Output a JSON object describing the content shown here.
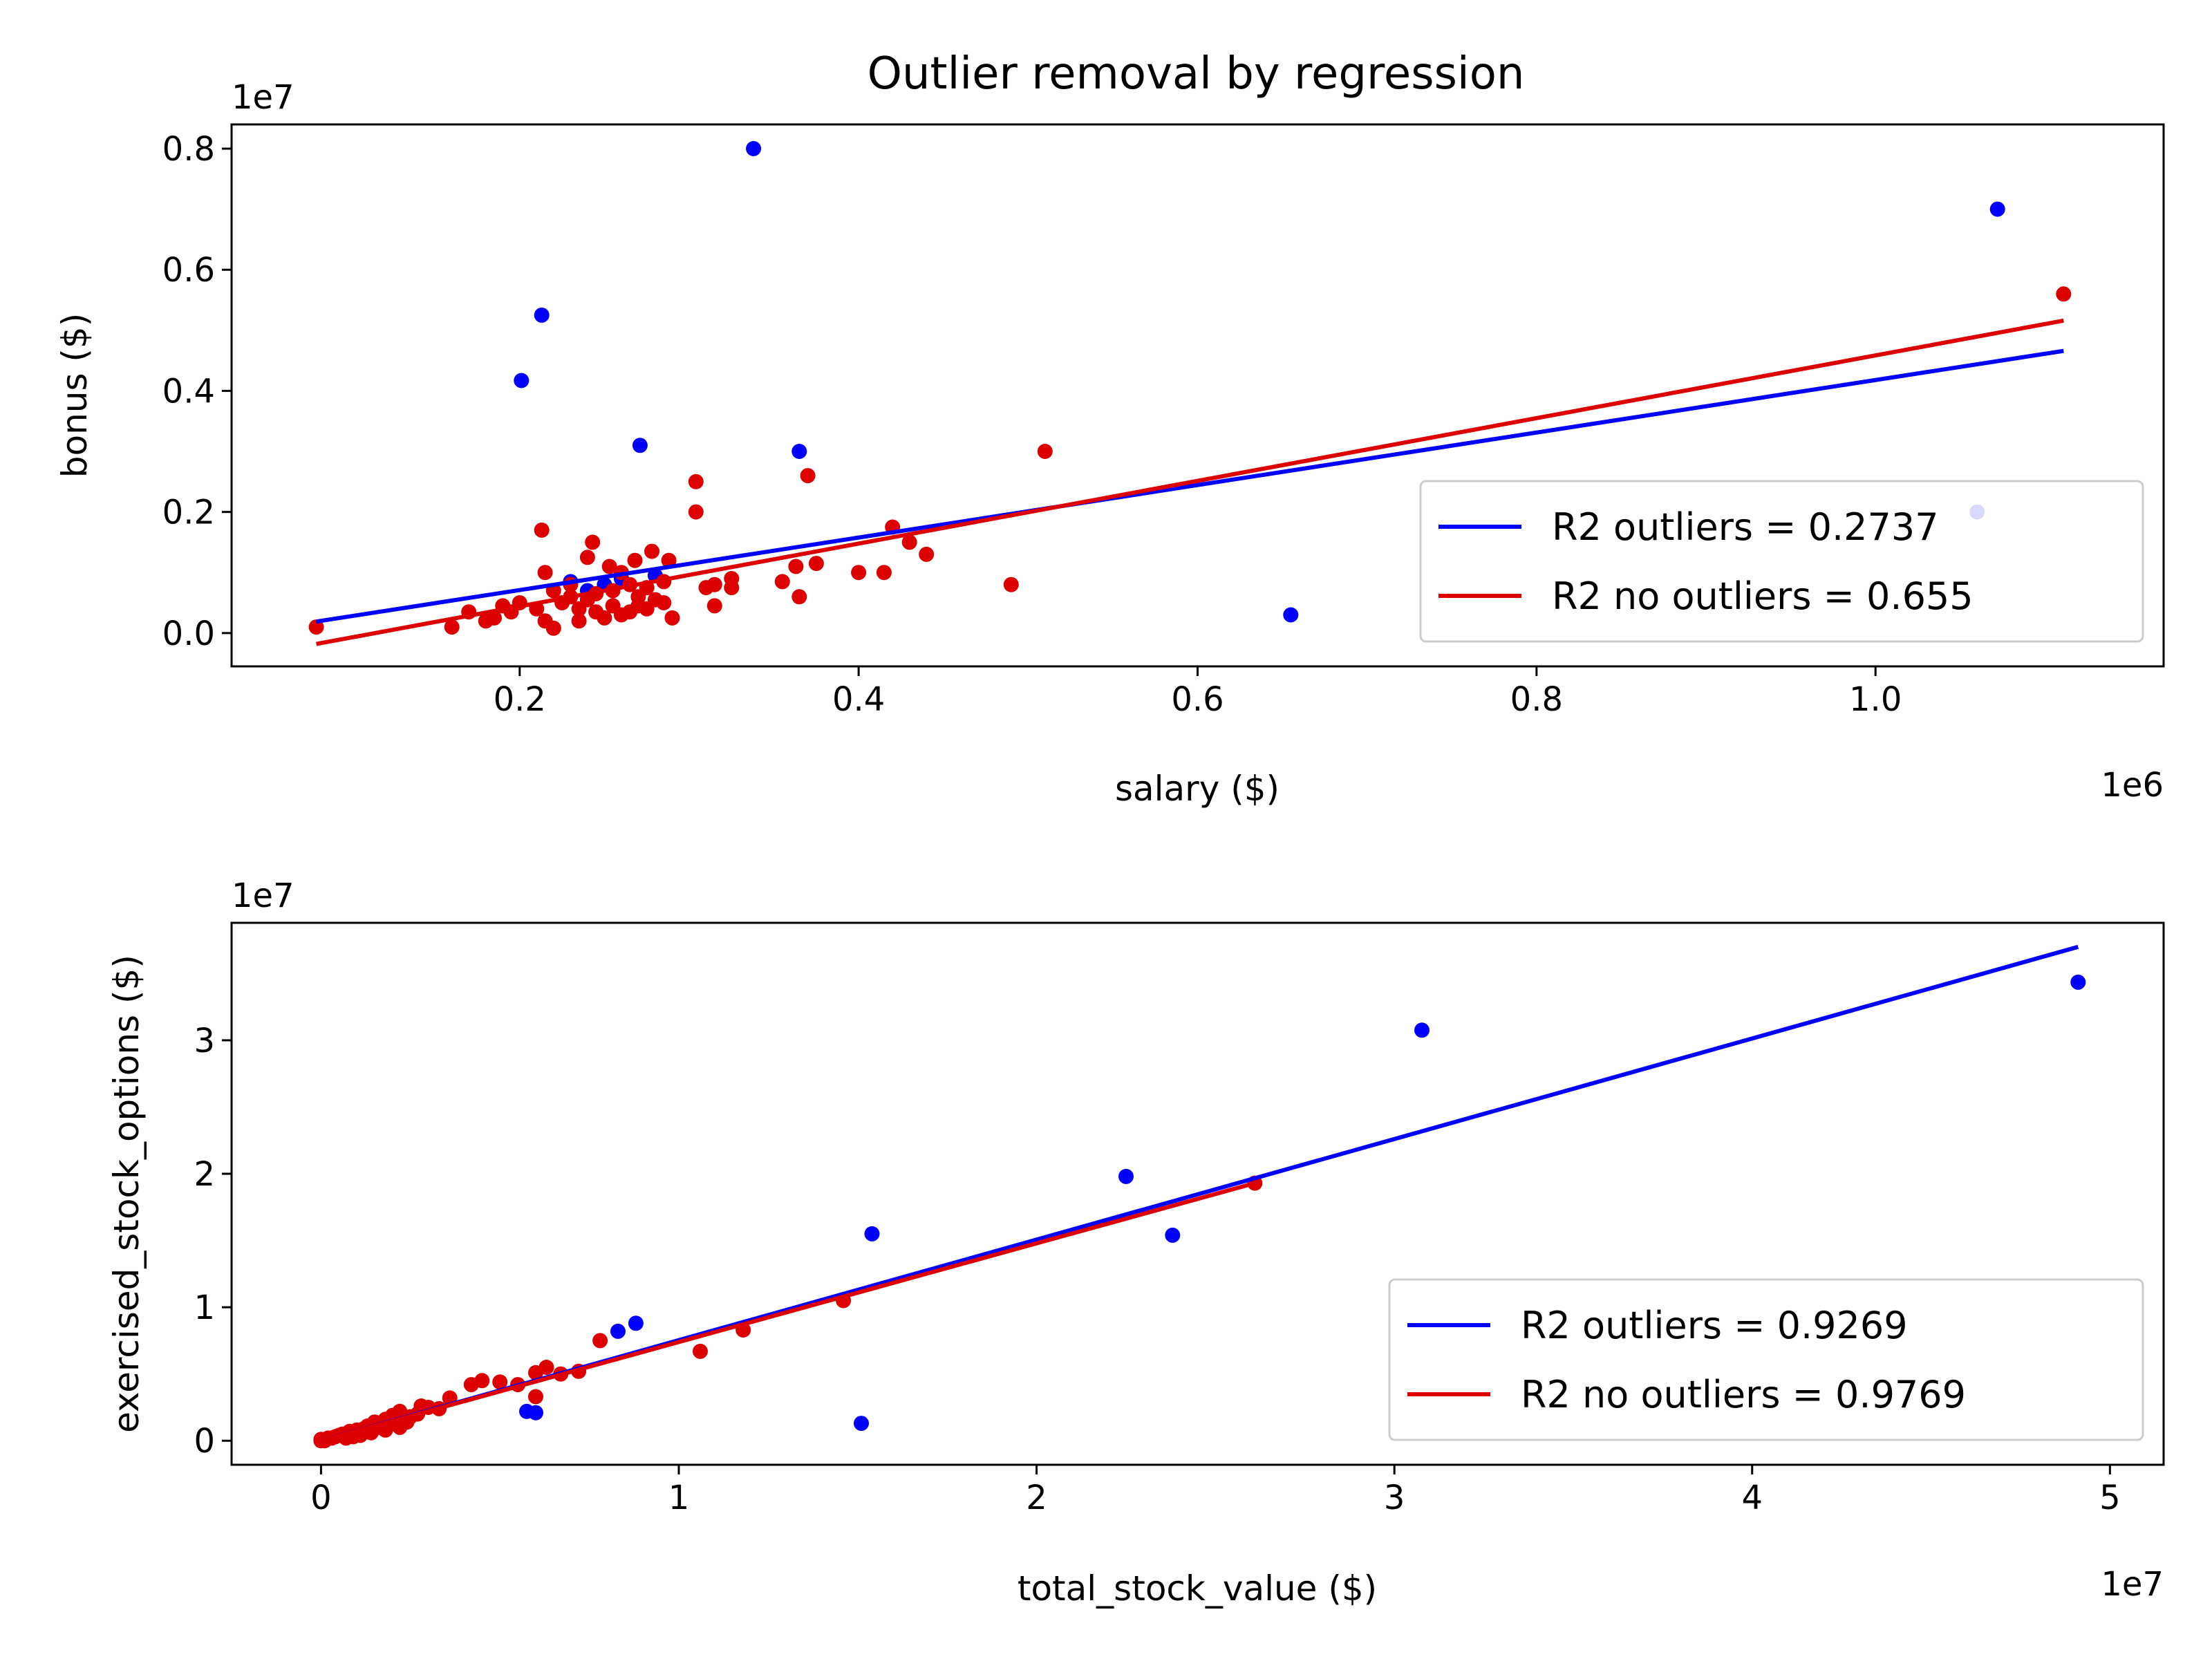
{
  "figure": {
    "title": "Outlier removal by regression"
  },
  "colors": {
    "outliers": "#0000ff",
    "no_outliers": "#dd0000",
    "axes": "#000000",
    "background": "#ffffff"
  },
  "chart_data": [
    {
      "type": "scatter",
      "title": "Outlier removal by regression",
      "xlabel": "salary ($)",
      "ylabel": "bonus ($)",
      "x_offset_label": "1e6",
      "y_offset_label": "1e7",
      "xlim": [
        0.03,
        1.17
      ],
      "ylim": [
        -0.055,
        0.84
      ],
      "xticks": [
        {
          "value": 0.2,
          "label": "0.2"
        },
        {
          "value": 0.4,
          "label": "0.4"
        },
        {
          "value": 0.6,
          "label": "0.6"
        },
        {
          "value": 0.8,
          "label": "0.8"
        },
        {
          "value": 1.0,
          "label": "1.0"
        }
      ],
      "yticks": [
        {
          "value": 0.0,
          "label": "0.0"
        },
        {
          "value": 0.2,
          "label": "0.2"
        },
        {
          "value": 0.4,
          "label": "0.4"
        },
        {
          "value": 0.6,
          "label": "0.6"
        },
        {
          "value": 0.8,
          "label": "0.8"
        }
      ],
      "grid": false,
      "legend_position": "lower-right",
      "series": [
        {
          "name": "",
          "kind": "points",
          "color": "#0000ff",
          "points": [
            [
              0.338,
              0.8
            ],
            [
              1.072,
              0.7
            ],
            [
              0.213,
              0.525
            ],
            [
              0.201,
              0.417
            ],
            [
              0.271,
              0.31
            ],
            [
              0.365,
              0.3
            ],
            [
              0.655,
              0.03
            ],
            [
              1.06,
              0.2
            ],
            [
              0.25,
              0.08
            ],
            [
              0.26,
              0.09
            ],
            [
              0.24,
              0.07
            ],
            [
              0.28,
              0.095
            ],
            [
              0.23,
              0.085
            ]
          ]
        },
        {
          "name": "",
          "kind": "points",
          "color": "#dd0000",
          "points": [
            [
              0.08,
              0.01
            ],
            [
              1.111,
              0.56
            ],
            [
              0.51,
              0.3
            ],
            [
              0.37,
              0.26
            ],
            [
              0.304,
              0.25
            ],
            [
              0.304,
              0.2
            ],
            [
              0.213,
              0.17
            ],
            [
              0.42,
              0.175
            ],
            [
              0.43,
              0.15
            ],
            [
              0.44,
              0.13
            ],
            [
              0.375,
              0.115
            ],
            [
              0.363,
              0.11
            ],
            [
              0.355,
              0.085
            ],
            [
              0.365,
              0.06
            ],
            [
              0.4,
              0.1
            ],
            [
              0.415,
              0.1
            ],
            [
              0.49,
              0.08
            ],
            [
              0.325,
              0.09
            ],
            [
              0.315,
              0.08
            ],
            [
              0.31,
              0.075
            ],
            [
              0.315,
              0.045
            ],
            [
              0.325,
              0.075
            ],
            [
              0.243,
              0.15
            ],
            [
              0.24,
              0.125
            ],
            [
              0.215,
              0.1
            ],
            [
              0.253,
              0.11
            ],
            [
              0.268,
              0.12
            ],
            [
              0.278,
              0.135
            ],
            [
              0.288,
              0.12
            ],
            [
              0.26,
              0.1
            ],
            [
              0.23,
              0.08
            ],
            [
              0.245,
              0.065
            ],
            [
              0.255,
              0.07
            ],
            [
              0.265,
              0.08
            ],
            [
              0.275,
              0.075
            ],
            [
              0.285,
              0.085
            ],
            [
              0.22,
              0.07
            ],
            [
              0.2,
              0.05
            ],
            [
              0.19,
              0.045
            ],
            [
              0.21,
              0.04
            ],
            [
              0.225,
              0.05
            ],
            [
              0.235,
              0.04
            ],
            [
              0.245,
              0.035
            ],
            [
              0.255,
              0.045
            ],
            [
              0.265,
              0.035
            ],
            [
              0.275,
              0.04
            ],
            [
              0.18,
              0.02
            ],
            [
              0.185,
              0.025
            ],
            [
              0.17,
              0.035
            ],
            [
              0.16,
              0.01
            ],
            [
              0.195,
              0.035
            ],
            [
              0.215,
              0.02
            ],
            [
              0.22,
              0.008
            ],
            [
              0.235,
              0.02
            ],
            [
              0.25,
              0.025
            ],
            [
              0.26,
              0.03
            ],
            [
              0.27,
              0.06
            ],
            [
              0.28,
              0.055
            ],
            [
              0.29,
              0.025
            ],
            [
              0.24,
              0.055
            ],
            [
              0.23,
              0.06
            ],
            [
              0.27,
              0.045
            ],
            [
              0.285,
              0.05
            ]
          ]
        },
        {
          "name": "R2 outliers = 0.2737",
          "kind": "line",
          "color": "#0000ff",
          "points": [
            [
              0.08,
              0.019
            ],
            [
              1.111,
              0.466
            ]
          ]
        },
        {
          "name": "R2 no outliers = 0.655",
          "kind": "line",
          "color": "#dd0000",
          "points": [
            [
              0.08,
              -0.018
            ],
            [
              1.111,
              0.516
            ]
          ]
        }
      ]
    },
    {
      "type": "scatter",
      "title": "",
      "xlabel": "total_stock_value ($)",
      "ylabel": "exercised_stock_options ($)",
      "x_offset_label": "1e7",
      "y_offset_label": "1e7",
      "xlim": [
        -0.25,
        5.15
      ],
      "ylim": [
        -0.18,
        3.88
      ],
      "xticks": [
        {
          "value": 0,
          "label": "0"
        },
        {
          "value": 1,
          "label": "1"
        },
        {
          "value": 2,
          "label": "2"
        },
        {
          "value": 3,
          "label": "3"
        },
        {
          "value": 4,
          "label": "4"
        },
        {
          "value": 5,
          "label": "5"
        }
      ],
      "yticks": [
        {
          "value": 0,
          "label": "0"
        },
        {
          "value": 1,
          "label": "1"
        },
        {
          "value": 2,
          "label": "2"
        },
        {
          "value": 3,
          "label": "3"
        }
      ],
      "grid": false,
      "legend_position": "lower-right",
      "series": [
        {
          "name": "",
          "kind": "points",
          "color": "#0000ff",
          "points": [
            [
              4.911,
              3.435
            ],
            [
              3.077,
              3.076
            ],
            [
              2.25,
              1.98
            ],
            [
              2.38,
              1.54
            ],
            [
              1.54,
              1.55
            ],
            [
              1.51,
              0.13
            ],
            [
              0.88,
              0.88
            ],
            [
              0.83,
              0.82
            ],
            [
              0.6,
              0.21
            ],
            [
              0.575,
              0.22
            ]
          ]
        },
        {
          "name": "",
          "kind": "points",
          "color": "#dd0000",
          "points": [
            [
              2.61,
              1.93
            ],
            [
              1.46,
              1.05
            ],
            [
              1.18,
              0.83
            ],
            [
              1.06,
              0.67
            ],
            [
              0.78,
              0.75
            ],
            [
              0.72,
              0.52
            ],
            [
              0.67,
              0.5
            ],
            [
              0.63,
              0.55
            ],
            [
              0.6,
              0.51
            ],
            [
              0.6,
              0.33
            ],
            [
              0.55,
              0.42
            ],
            [
              0.5,
              0.44
            ],
            [
              0.45,
              0.45
            ],
            [
              0.42,
              0.42
            ],
            [
              0.36,
              0.32
            ],
            [
              0.33,
              0.24
            ],
            [
              0.3,
              0.25
            ],
            [
              0.25,
              0.18
            ],
            [
              0.22,
              0.22
            ],
            [
              0.2,
              0.19
            ],
            [
              0.18,
              0.16
            ],
            [
              0.15,
              0.14
            ],
            [
              0.22,
              0.1
            ],
            [
              0.18,
              0.08
            ],
            [
              0.13,
              0.11
            ],
            [
              0.12,
              0.09
            ],
            [
              0.1,
              0.08
            ],
            [
              0.08,
              0.07
            ],
            [
              0.06,
              0.05
            ],
            [
              0.05,
              0.04
            ],
            [
              0.04,
              0.03
            ],
            [
              0.03,
              0.02
            ],
            [
              0.02,
              0.02
            ],
            [
              0.01,
              0.0
            ],
            [
              0.0,
              0.0
            ],
            [
              0.0,
              0.01
            ],
            [
              0.09,
              0.03
            ],
            [
              0.07,
              0.02
            ],
            [
              0.14,
              0.06
            ],
            [
              0.11,
              0.04
            ],
            [
              0.16,
              0.1
            ],
            [
              0.19,
              0.12
            ],
            [
              0.24,
              0.14
            ],
            [
              0.27,
              0.2
            ],
            [
              0.28,
              0.26
            ]
          ]
        },
        {
          "name": "R2 outliers = 0.9269",
          "kind": "line",
          "color": "#0000ff",
          "points": [
            [
              0.0,
              0.0
            ],
            [
              4.911,
              3.7
            ]
          ]
        },
        {
          "name": "R2 no outliers = 0.9769",
          "kind": "line",
          "color": "#dd0000",
          "points": [
            [
              0.0,
              0.0
            ],
            [
              2.61,
              1.93
            ]
          ]
        }
      ]
    }
  ]
}
